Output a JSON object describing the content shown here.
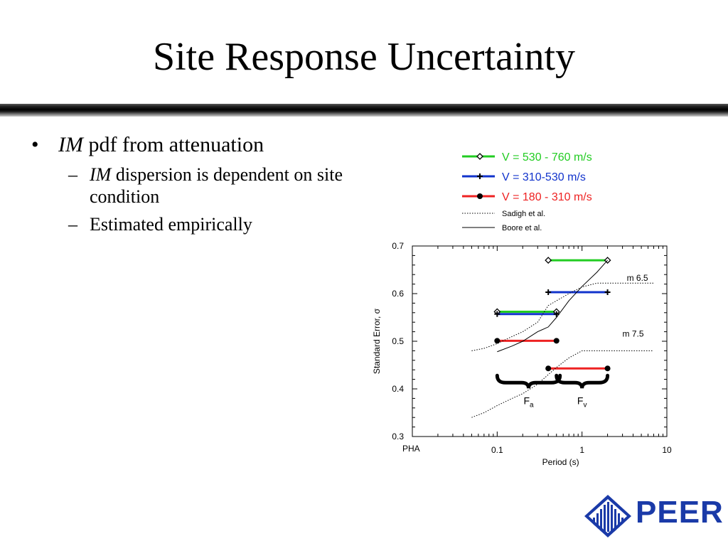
{
  "slide": {
    "title": "Site Response Uncertainty"
  },
  "bullets": {
    "main": {
      "em": "IM",
      "rest": " pdf from attenuation"
    },
    "subs": [
      {
        "em": "IM",
        "rest": " dispersion is dependent on site condition"
      },
      {
        "em": "",
        "rest": "Estimated empirically"
      }
    ]
  },
  "logo": {
    "text": "PEER",
    "color": "#1a3aa8"
  },
  "chart_data": {
    "type": "line",
    "xlabel": "Period (s)",
    "ylabel": "Standard Error, σ",
    "x_scale": "log",
    "xlim": [
      0.01,
      10
    ],
    "ylim": [
      0.3,
      0.7
    ],
    "y_ticks": [
      "0.3",
      "0.4",
      "0.5",
      "0.6",
      "0.7"
    ],
    "x_ticks": [
      {
        "value": 0.01,
        "label": "PHA"
      },
      {
        "value": 0.1,
        "label": "0.1"
      },
      {
        "value": 1,
        "label": "1"
      },
      {
        "value": 10,
        "label": "10"
      }
    ],
    "legend_position": "top",
    "series": [
      {
        "name": "V = 530 - 760 m/s",
        "color": "#22cc22",
        "marker": "diamond",
        "segments": [
          [
            [
              0.1,
              0.562
            ],
            [
              0.5,
              0.562
            ]
          ],
          [
            [
              0.4,
              0.67
            ],
            [
              2.0,
              0.67
            ]
          ]
        ]
      },
      {
        "name": "V = 310-530 m/s",
        "color": "#1133cc",
        "marker": "plus",
        "segments": [
          [
            [
              0.1,
              0.557
            ],
            [
              0.5,
              0.557
            ]
          ],
          [
            [
              0.4,
              0.603
            ],
            [
              2.0,
              0.603
            ]
          ]
        ]
      },
      {
        "name": "V = 180 - 310 m/s",
        "color": "#ee2222",
        "marker": "circle",
        "segments": [
          [
            [
              0.1,
              0.501
            ],
            [
              0.5,
              0.501
            ]
          ],
          [
            [
              0.4,
              0.443
            ],
            [
              2.0,
              0.443
            ]
          ]
        ]
      },
      {
        "name": "Sadigh et al.",
        "color": "#000000",
        "style": "dotted",
        "segments": [
          [
            [
              0.05,
              0.48
            ],
            [
              0.07,
              0.485
            ],
            [
              0.1,
              0.495
            ],
            [
              0.15,
              0.51
            ],
            [
              0.2,
              0.52
            ],
            [
              0.3,
              0.54
            ],
            [
              0.4,
              0.575
            ],
            [
              0.5,
              0.585
            ],
            [
              0.7,
              0.6
            ],
            [
              1.0,
              0.614
            ],
            [
              1.5,
              0.622
            ],
            [
              3.0,
              0.622
            ],
            [
              7.0,
              0.622
            ]
          ],
          [
            [
              0.05,
              0.34
            ],
            [
              0.07,
              0.35
            ],
            [
              0.1,
              0.365
            ],
            [
              0.15,
              0.38
            ],
            [
              0.2,
              0.39
            ],
            [
              0.3,
              0.41
            ],
            [
              0.4,
              0.43
            ],
            [
              0.5,
              0.445
            ],
            [
              0.7,
              0.465
            ],
            [
              1.0,
              0.48
            ],
            [
              1.5,
              0.48
            ],
            [
              3.0,
              0.48
            ],
            [
              7.0,
              0.48
            ]
          ]
        ]
      },
      {
        "name": "Boore et al.",
        "color": "#000000",
        "style": "solid",
        "segments": [
          [
            [
              0.1,
              0.478
            ],
            [
              0.15,
              0.49
            ],
            [
              0.2,
              0.5
            ],
            [
              0.3,
              0.52
            ],
            [
              0.4,
              0.53
            ],
            [
              0.5,
              0.55
            ],
            [
              0.7,
              0.585
            ],
            [
              1.0,
              0.615
            ],
            [
              1.5,
              0.645
            ],
            [
              2.0,
              0.67
            ]
          ]
        ]
      }
    ],
    "annotations": [
      {
        "text": "m 6.5",
        "x": 4.5,
        "y": 0.627
      },
      {
        "text": "m 7.5",
        "x": 4.0,
        "y": 0.51
      }
    ],
    "braces": [
      {
        "label": "F",
        "sub": "a",
        "x_from": 0.1,
        "x_to": 0.55,
        "y": 0.41
      },
      {
        "label": "F",
        "sub": "v",
        "x_from": 0.5,
        "x_to": 2.0,
        "y": 0.41
      }
    ]
  }
}
